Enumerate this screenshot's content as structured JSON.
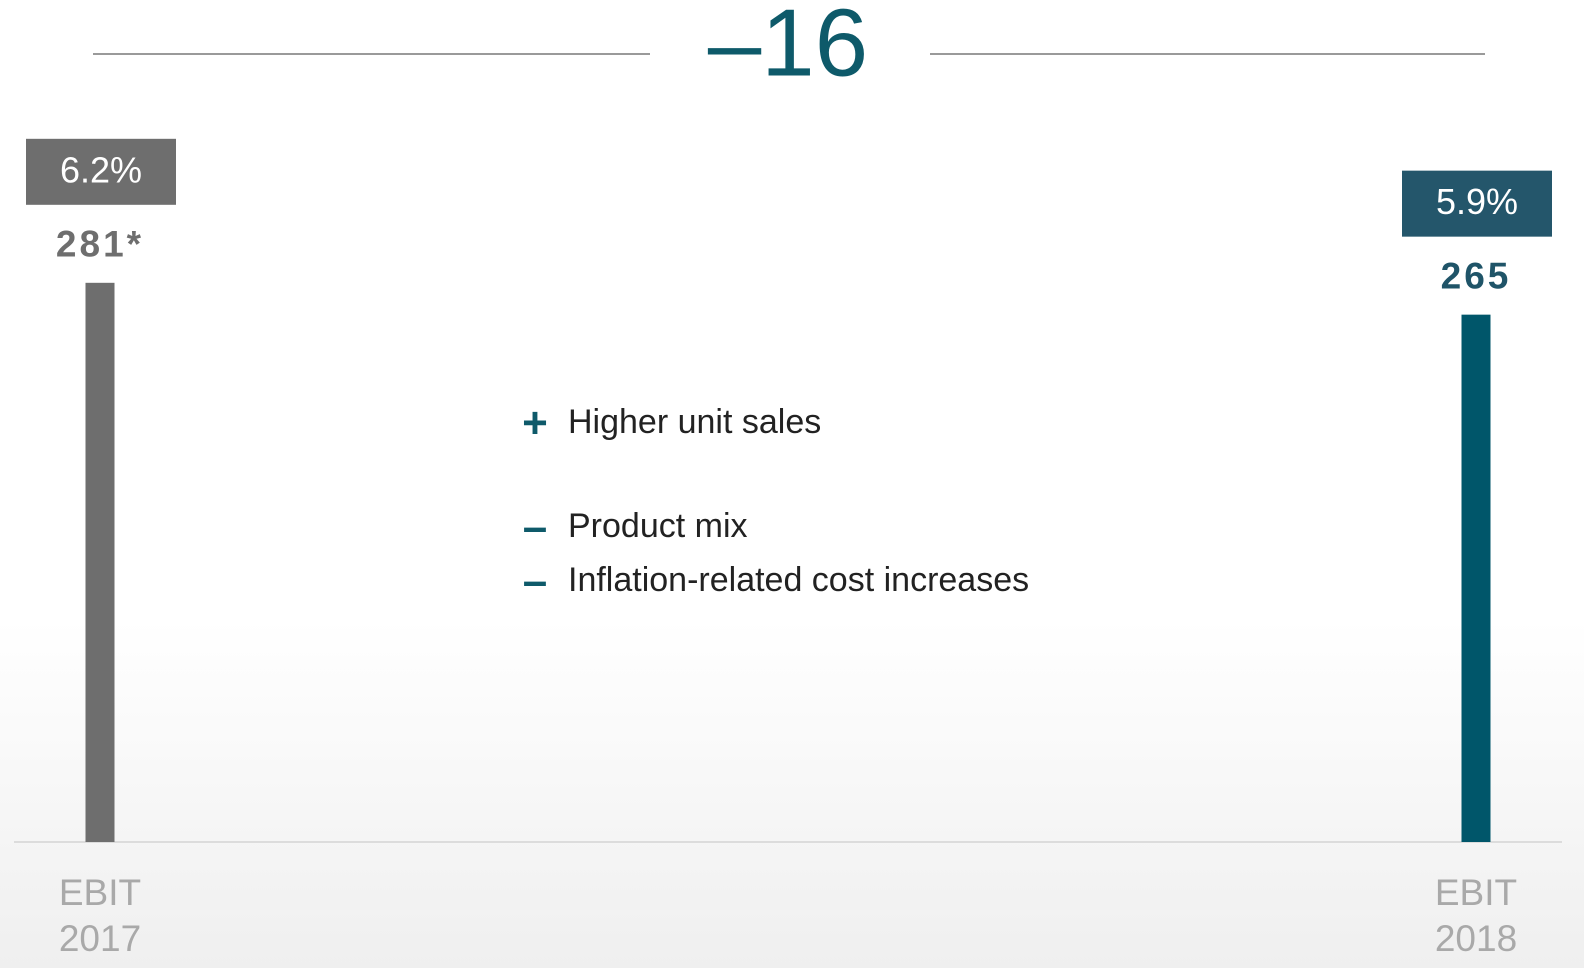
{
  "chart_data": {
    "type": "bar",
    "title": "–16",
    "categories": [
      "EBIT 2017",
      "EBIT 2018"
    ],
    "values": [
      281,
      265
    ],
    "value_labels": [
      "281*",
      "265"
    ],
    "colors": [
      "#6e6e6e",
      "#00566a"
    ],
    "label_colors": [
      "#6e6e6e",
      "#1f5468"
    ],
    "margins": {
      "values": [
        6.2,
        5.9
      ],
      "value_labels": [
        "6.2%",
        "5.9%"
      ],
      "colors": [
        "#6e6e6e",
        "#24566b"
      ]
    },
    "ylim": [
      0,
      300
    ],
    "annotations": [
      {
        "sign": "+",
        "text": "Higher unit sales"
      },
      {
        "sign": "–",
        "text": "Product mix"
      },
      {
        "sign": "–",
        "text": "Inflation-related cost increases"
      }
    ]
  }
}
